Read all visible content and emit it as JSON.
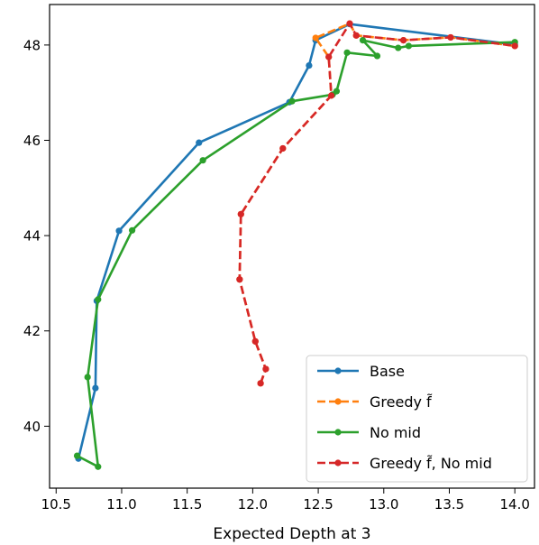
{
  "chart_data": {
    "type": "line",
    "title": "",
    "xlabel": "Expected Depth at 3",
    "ylabel": "",
    "xlim": [
      10.45,
      14.15
    ],
    "ylim": [
      38.7,
      48.85
    ],
    "xticks": [
      10.5,
      11.0,
      11.5,
      12.0,
      12.5,
      13.0,
      13.5,
      14.0
    ],
    "xtick_labels": [
      "10.5",
      "11.0",
      "11.5",
      "12.0",
      "12.5",
      "13.0",
      "13.5",
      "14.0"
    ],
    "yticks": [
      40,
      42,
      44,
      46,
      48
    ],
    "ytick_labels": [
      "40",
      "42",
      "44",
      "46",
      "48"
    ],
    "grid": false,
    "legend_position": "bottom-right",
    "series": [
      {
        "name": "Base",
        "color": "#1f77b4",
        "dashed": false,
        "x": [
          10.67,
          10.8,
          10.81,
          10.98,
          11.59,
          12.28,
          12.43,
          12.48,
          12.74,
          14.0
        ],
        "y": [
          39.32,
          40.8,
          42.63,
          44.1,
          45.95,
          46.8,
          47.57,
          48.1,
          48.44,
          48.01
        ]
      },
      {
        "name": "Greedy f̃",
        "color": "#ff7f0e",
        "dashed": true,
        "x": [
          12.06,
          12.1,
          12.02,
          11.9,
          11.91,
          12.23,
          12.6,
          12.58,
          12.48,
          12.74,
          12.79,
          13.15,
          13.51,
          14.0
        ],
        "y": [
          40.9,
          41.2,
          41.78,
          43.08,
          44.45,
          45.83,
          46.94,
          47.75,
          48.15,
          48.45,
          48.2,
          48.1,
          48.16,
          47.98
        ]
      },
      {
        "name": "No mid",
        "color": "#2ca02c",
        "dashed": false,
        "x": [
          10.66,
          10.82,
          10.74,
          10.82,
          11.08,
          11.62,
          12.3,
          12.61,
          12.64,
          12.72,
          12.95,
          12.84,
          13.11,
          13.19,
          14.0
        ],
        "y": [
          39.38,
          39.15,
          41.03,
          42.66,
          44.11,
          45.58,
          46.82,
          46.96,
          47.03,
          47.84,
          47.77,
          48.1,
          47.94,
          47.98,
          48.06
        ]
      },
      {
        "name": "Greedy f̃, No mid",
        "color": "#d62728",
        "dashed": true,
        "x": [
          12.06,
          12.1,
          12.02,
          11.9,
          11.91,
          12.23,
          12.6,
          12.58,
          12.74,
          12.79,
          13.15,
          13.51,
          14.0
        ],
        "y": [
          40.9,
          41.2,
          41.78,
          43.08,
          44.45,
          45.83,
          46.94,
          47.75,
          48.45,
          48.2,
          48.1,
          48.16,
          47.98
        ]
      }
    ]
  }
}
